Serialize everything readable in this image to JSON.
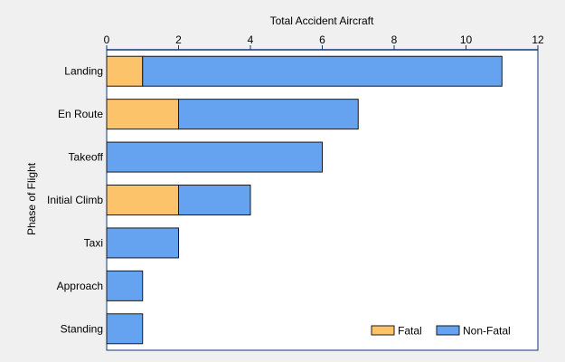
{
  "chart_data": {
    "type": "bar",
    "orientation": "horizontal",
    "stacked": true,
    "xlabel": "Total Accident Aircraft",
    "ylabel": "Phase of Flight",
    "xlim": [
      0,
      12
    ],
    "x_ticks": [
      0,
      2,
      4,
      6,
      8,
      10,
      12
    ],
    "x_axis_position": "top",
    "grid": false,
    "legend_position": "bottom-right",
    "categories": [
      "Landing",
      "En Route",
      "Takeoff",
      "Initial Climb",
      "Taxi",
      "Approach",
      "Standing"
    ],
    "series": [
      {
        "name": "Fatal",
        "color": "#fcc36b",
        "values": [
          1,
          2,
          0,
          2,
          0,
          0,
          0
        ]
      },
      {
        "name": "Non-Fatal",
        "color": "#65a3f0",
        "values": [
          10,
          5,
          6,
          2,
          2,
          1,
          1
        ]
      }
    ]
  }
}
